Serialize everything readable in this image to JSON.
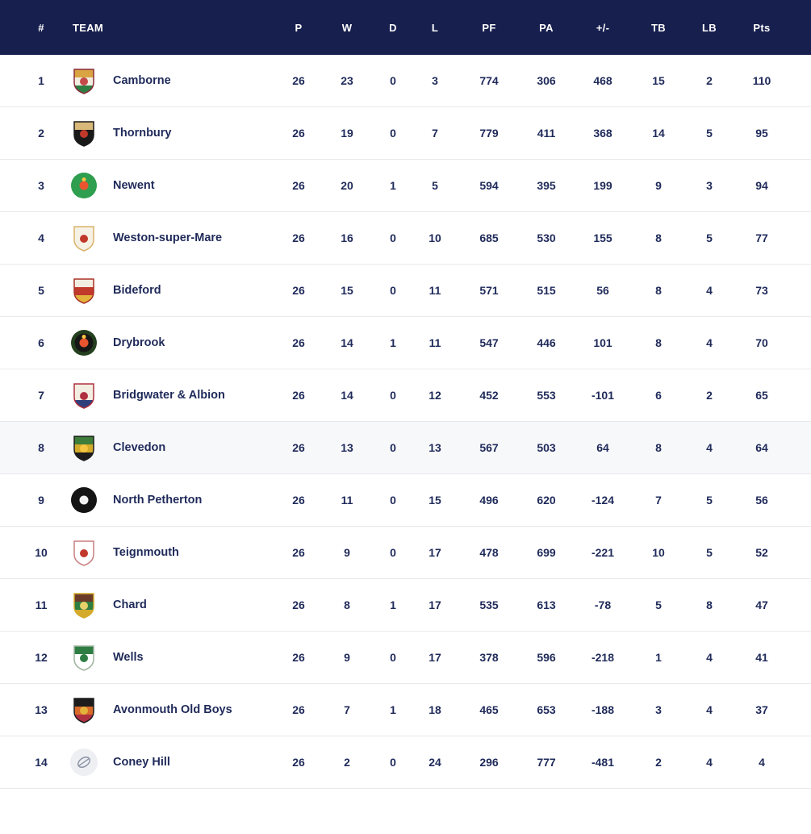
{
  "colors": {
    "header_bg": "#171f4e",
    "header_text": "#ffffff",
    "row_text": "#1f2a5a",
    "border": "#e8e9ed",
    "highlight_bg": "#f7f8fa"
  },
  "table": {
    "columns": [
      {
        "key": "rank",
        "label": "#"
      },
      {
        "key": "team",
        "label": "TEAM"
      },
      {
        "key": "p",
        "label": "P"
      },
      {
        "key": "w",
        "label": "W"
      },
      {
        "key": "d",
        "label": "D"
      },
      {
        "key": "l",
        "label": "L"
      },
      {
        "key": "pf",
        "label": "PF"
      },
      {
        "key": "pa",
        "label": "PA"
      },
      {
        "key": "diff",
        "label": "+/-"
      },
      {
        "key": "tb",
        "label": "TB"
      },
      {
        "key": "lb",
        "label": "LB"
      },
      {
        "key": "pts",
        "label": "Pts"
      }
    ],
    "rows": [
      {
        "rank": "1",
        "team": "Camborne",
        "p": "26",
        "w": "23",
        "d": "0",
        "l": "3",
        "pf": "774",
        "pa": "306",
        "diff": "468",
        "tb": "15",
        "lb": "2",
        "pts": "110",
        "highlighted": false,
        "badge": {
          "shape": "shield",
          "colors": [
            "#8a2b3a",
            "#d9a441",
            "#f3eee2",
            "#2e7d43",
            "#c34a4a"
          ]
        }
      },
      {
        "rank": "2",
        "team": "Thornbury",
        "p": "26",
        "w": "19",
        "d": "0",
        "l": "7",
        "pf": "779",
        "pa": "411",
        "diff": "368",
        "tb": "14",
        "lb": "5",
        "pts": "95",
        "highlighted": false,
        "badge": {
          "shape": "shield",
          "colors": [
            "#1a1a1a",
            "#d8b97a",
            "#191919",
            "#191919",
            "#c0392b"
          ]
        }
      },
      {
        "rank": "3",
        "team": "Newent",
        "p": "26",
        "w": "20",
        "d": "1",
        "l": "5",
        "pf": "594",
        "pa": "395",
        "diff": "199",
        "tb": "9",
        "lb": "3",
        "pts": "94",
        "highlighted": false,
        "badge": {
          "shape": "circle",
          "colors": [
            "#2e9e4f",
            "#2e9e4f",
            "#e8552f",
            "#f5c542"
          ]
        }
      },
      {
        "rank": "4",
        "team": "Weston-super-Mare",
        "p": "26",
        "w": "16",
        "d": "0",
        "l": "10",
        "pf": "685",
        "pa": "530",
        "diff": "155",
        "tb": "8",
        "lb": "5",
        "pts": "77",
        "highlighted": false,
        "badge": {
          "shape": "shield",
          "colors": [
            "#d9b36a",
            "#f6f1e5",
            "#f6f1e5",
            "#f6f1e5",
            "#c0392b"
          ]
        }
      },
      {
        "rank": "5",
        "team": "Bideford",
        "p": "26",
        "w": "15",
        "d": "0",
        "l": "11",
        "pf": "571",
        "pa": "515",
        "diff": "56",
        "tb": "8",
        "lb": "4",
        "pts": "73",
        "highlighted": false,
        "badge": {
          "shape": "shield",
          "colors": [
            "#a93226",
            "#f3eee2",
            "#c0392b",
            "#e3b23c",
            null
          ]
        }
      },
      {
        "rank": "6",
        "team": "Drybrook",
        "p": "26",
        "w": "14",
        "d": "1",
        "l": "11",
        "pf": "547",
        "pa": "446",
        "diff": "101",
        "tb": "8",
        "lb": "4",
        "pts": "70",
        "highlighted": false,
        "badge": {
          "shape": "circle",
          "colors": [
            "#24401f",
            "#161616",
            "#e8552f",
            "#f5c542"
          ]
        }
      },
      {
        "rank": "7",
        "team": "Bridgwater & Albion",
        "p": "26",
        "w": "14",
        "d": "0",
        "l": "12",
        "pf": "452",
        "pa": "553",
        "diff": "-101",
        "tb": "6",
        "lb": "2",
        "pts": "65",
        "highlighted": false,
        "badge": {
          "shape": "shield",
          "colors": [
            "#b03040",
            "#f3eee2",
            "#f3eee2",
            "#2e3f7c",
            "#b03040"
          ]
        }
      },
      {
        "rank": "8",
        "team": "Clevedon",
        "p": "26",
        "w": "13",
        "d": "0",
        "l": "13",
        "pf": "567",
        "pa": "503",
        "diff": "64",
        "tb": "8",
        "lb": "4",
        "pts": "64",
        "highlighted": true,
        "badge": {
          "shape": "shield",
          "colors": [
            "#1c1c1c",
            "#3f7d3a",
            "#d4aa2a",
            "#1c1c1c",
            "#f5c542"
          ]
        }
      },
      {
        "rank": "9",
        "team": "North Petherton",
        "p": "26",
        "w": "11",
        "d": "0",
        "l": "15",
        "pf": "496",
        "pa": "620",
        "diff": "-124",
        "tb": "7",
        "lb": "5",
        "pts": "56",
        "highlighted": false,
        "badge": {
          "shape": "circle",
          "colors": [
            "#141414",
            "#141414",
            "#f2f2f2",
            null
          ]
        }
      },
      {
        "rank": "10",
        "team": "Teignmouth",
        "p": "26",
        "w": "9",
        "d": "0",
        "l": "17",
        "pf": "478",
        "pa": "699",
        "diff": "-221",
        "tb": "10",
        "lb": "5",
        "pts": "52",
        "highlighted": false,
        "badge": {
          "shape": "shield",
          "colors": [
            "#c87f7f",
            "#ffffff",
            "#ffffff",
            "#ffffff",
            "#c0392b"
          ]
        }
      },
      {
        "rank": "11",
        "team": "Chard",
        "p": "26",
        "w": "8",
        "d": "1",
        "l": "17",
        "pf": "535",
        "pa": "613",
        "diff": "-78",
        "tb": "5",
        "lb": "8",
        "pts": "47",
        "highlighted": false,
        "badge": {
          "shape": "shield",
          "colors": [
            "#d4aa2a",
            "#6b3b2a",
            "#2e7d43",
            "#d4aa2a",
            "#e8d06a"
          ]
        }
      },
      {
        "rank": "12",
        "team": "Wells",
        "p": "26",
        "w": "9",
        "d": "0",
        "l": "17",
        "pf": "378",
        "pa": "596",
        "diff": "-218",
        "tb": "1",
        "lb": "4",
        "pts": "41",
        "highlighted": false,
        "badge": {
          "shape": "shield",
          "colors": [
            "#9fb3a0",
            "#2e7d43",
            "#ffffff",
            "#ffffff",
            "#2e7d43"
          ]
        }
      },
      {
        "rank": "13",
        "team": "Avonmouth Old Boys",
        "p": "26",
        "w": "7",
        "d": "1",
        "l": "18",
        "pf": "465",
        "pa": "653",
        "diff": "-188",
        "tb": "3",
        "lb": "4",
        "pts": "37",
        "highlighted": false,
        "badge": {
          "shape": "shield",
          "colors": [
            "#1c1c1c",
            "#1c1c1c",
            "#d86a2a",
            "#b03040",
            "#e3b23c"
          ]
        }
      },
      {
        "rank": "14",
        "team": "Coney Hill",
        "p": "26",
        "w": "2",
        "d": "0",
        "l": "24",
        "pf": "296",
        "pa": "777",
        "diff": "-481",
        "tb": "2",
        "lb": "4",
        "pts": "4",
        "highlighted": false,
        "badge": {
          "shape": "ball",
          "colors": [
            "#edeff3",
            "#8b93a5"
          ]
        }
      }
    ]
  }
}
